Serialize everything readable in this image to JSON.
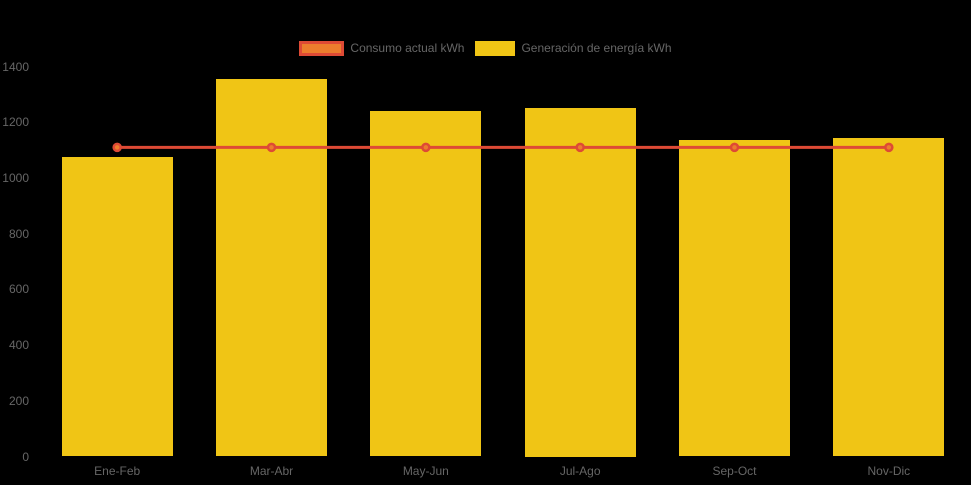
{
  "page": {
    "background": "#000000",
    "axis_text_color": "#666666"
  },
  "legend": {
    "position": "top",
    "items": [
      {
        "label": "Consumo actual kWh",
        "swatch_fill": "#EC7D2D",
        "swatch_border": "#DE4A35",
        "kind": "line"
      },
      {
        "label": "Generación de energía kWh",
        "swatch_fill": "#F0C515",
        "swatch_border": "#F0C515",
        "kind": "bar"
      }
    ]
  },
  "chart_data": {
    "type": "bar",
    "title": "",
    "xlabel": "",
    "ylabel": "",
    "categories": [
      "Ene-Feb",
      "Mar-Abr",
      "May-Jun",
      "Jul-Ago",
      "Sep-Oct",
      "Nov-Dic"
    ],
    "series": [
      {
        "name": "Consumo actual kWh",
        "type": "line",
        "color": "#DE4A35",
        "point_fill": "#EC7D2D",
        "point_border": "#DE4A35",
        "values": [
          1110,
          1110,
          1110,
          1110,
          1110,
          1110
        ]
      },
      {
        "name": "Generación de energía kWh",
        "type": "bar",
        "color": "#F0C515",
        "values": [
          1075,
          1355,
          1240,
          1250,
          1135,
          1145
        ]
      }
    ],
    "ylim": [
      0,
      1400
    ],
    "ytick_step": 200,
    "ytick_labels": [
      "1400",
      "1200",
      "1000",
      "800",
      "600",
      "400",
      "200",
      "0"
    ],
    "grid": false,
    "legend_position": "top"
  }
}
